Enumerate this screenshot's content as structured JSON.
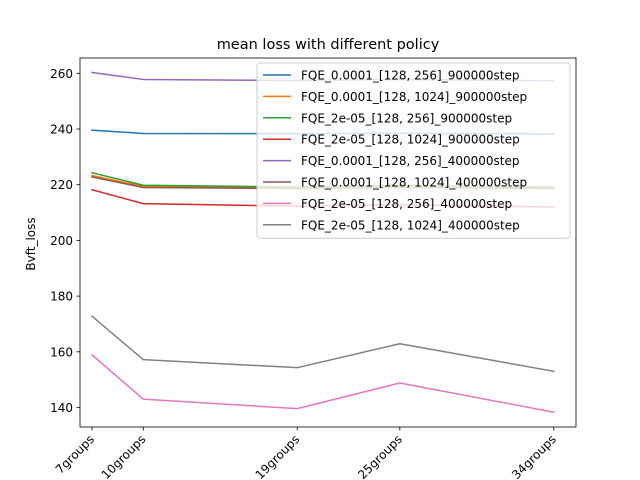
{
  "chart_data": {
    "type": "line",
    "title": "mean loss with different policy",
    "xlabel": "",
    "ylabel": "Bvft_loss",
    "x": [
      7,
      10,
      19,
      25,
      34
    ],
    "xlim": [
      6.3,
      35.3
    ],
    "ylim": [
      133,
      265.5
    ],
    "yticks": [
      140,
      160,
      180,
      200,
      220,
      240,
      260
    ],
    "xtick_labels": [
      "7groups",
      "10groups",
      "19groups",
      "25groups",
      "34groups"
    ],
    "grid": false,
    "legend_position": "upper right",
    "series": [
      {
        "name": "FQE_0.0001_[128, 256]_900000step",
        "color": "#1f77b4",
        "values": [
          239.6,
          238.4,
          238.3,
          238.5,
          238.2
        ]
      },
      {
        "name": "FQE_0.0001_[128, 1024]_900000step",
        "color": "#ff7f0e",
        "values": [
          223.3,
          219.4,
          218.9,
          219.4,
          219.0
        ]
      },
      {
        "name": "FQE_2e-05_[128, 256]_900000step",
        "color": "#2ca02c",
        "values": [
          224.3,
          219.8,
          219.2,
          219.7,
          219.2
        ]
      },
      {
        "name": "FQE_2e-05_[128, 1024]_900000step",
        "color": "#d62728",
        "values": [
          218.2,
          213.2,
          212.3,
          212.8,
          212.0
        ]
      },
      {
        "name": "FQE_0.0001_[128, 256]_400000step",
        "color": "#9467bd",
        "values": [
          260.3,
          257.8,
          257.4,
          257.8,
          257.3
        ]
      },
      {
        "name": "FQE_0.0001_[128, 1024]_400000step",
        "color": "#8c564b",
        "values": [
          222.8,
          219.0,
          218.6,
          219.0,
          218.6
        ]
      },
      {
        "name": "FQE_2e-05_[128, 256]_400000step",
        "color": "#e377c2",
        "values": [
          158.9,
          143.0,
          139.6,
          148.8,
          138.3
        ]
      },
      {
        "name": "FQE_2e-05_[128, 1024]_400000step",
        "color": "#7f7f7f",
        "values": [
          172.8,
          157.2,
          154.3,
          162.9,
          153.0
        ]
      }
    ]
  }
}
